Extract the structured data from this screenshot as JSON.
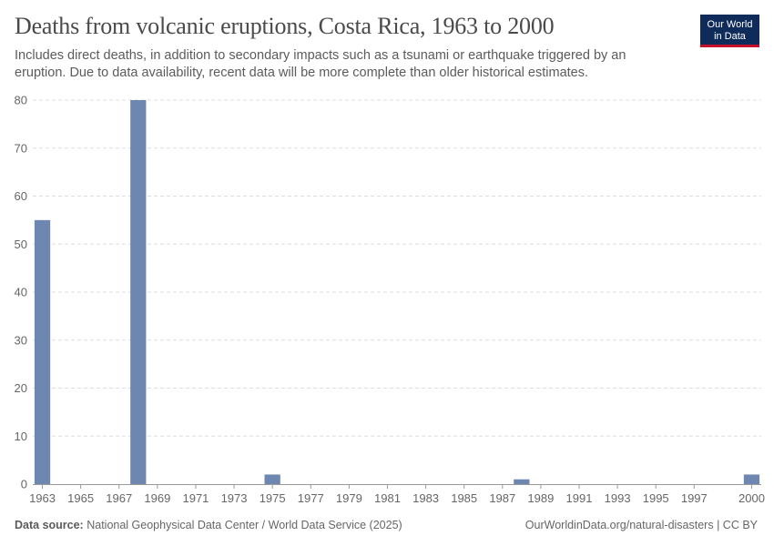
{
  "header": {
    "title": "Deaths from volcanic eruptions, Costa Rica, 1963 to 2000",
    "subtitle": "Includes direct deaths, in addition to secondary impacts such as a tsunami or earthquake triggered by an eruption. Due to data availability, recent data will be more complete than older historical estimates."
  },
  "logo": {
    "line1": "Our World",
    "line2": "in Data"
  },
  "footer": {
    "source_label": "Data source:",
    "source_text": "National Geophysical Data Center / World Data Service (2025)",
    "right_text": "OurWorldinData.org/natural-disasters | CC BY"
  },
  "colors": {
    "bar": "#6d87b0",
    "grid": "#dddddd",
    "axis": "#999999",
    "tick_text": "#666666"
  },
  "chart_data": {
    "type": "bar",
    "title": "Deaths from volcanic eruptions, Costa Rica, 1963 to 2000",
    "xlabel": "",
    "ylabel": "",
    "xlim": [
      1963,
      2000
    ],
    "ylim": [
      0,
      80
    ],
    "y_ticks": [
      0,
      10,
      20,
      30,
      40,
      50,
      60,
      70,
      80
    ],
    "x_ticks": [
      1963,
      1965,
      1967,
      1969,
      1971,
      1973,
      1975,
      1977,
      1979,
      1981,
      1983,
      1985,
      1987,
      1989,
      1991,
      1993,
      1995,
      1997,
      2000
    ],
    "grid": true,
    "series": [
      {
        "name": "Deaths",
        "points": [
          {
            "x": 1963,
            "y": 55
          },
          {
            "x": 1968,
            "y": 80
          },
          {
            "x": 1975,
            "y": 2
          },
          {
            "x": 1988,
            "y": 1
          },
          {
            "x": 2000,
            "y": 2
          }
        ]
      }
    ]
  }
}
